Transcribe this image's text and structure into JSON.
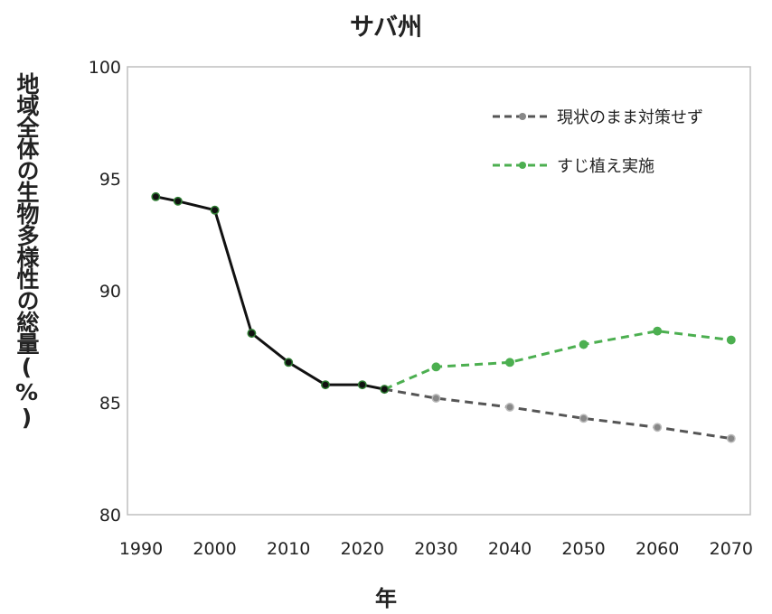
{
  "chart_data": {
    "type": "line",
    "title": "サバ州",
    "xlabel": "年",
    "ylabel": "地域全体の生物多様性の総量(%)",
    "ylim": [
      80,
      100
    ],
    "yticks": [
      80,
      85,
      90,
      95,
      100
    ],
    "x_tick_labels": [
      "1990",
      "2000",
      "2010",
      "2020",
      "2030",
      "2040",
      "2050",
      "2060",
      "2070"
    ],
    "grid": false,
    "legend_position": "top-right",
    "series": [
      {
        "style": "solid",
        "color": "#111111",
        "marker_fill": "#111111",
        "marker_edge": "#2e7d32",
        "x": [
          "1992",
          "1995",
          "2000",
          "2005",
          "2010",
          "2015",
          "2020",
          "2023"
        ],
        "values": [
          94.2,
          94.0,
          93.6,
          88.1,
          86.8,
          85.8,
          85.8,
          85.6
        ]
      },
      {
        "name": "現状のまま対策せず",
        "style": "dashed",
        "color": "#555555",
        "marker_fill": "#888888",
        "x": [
          "2023",
          "2030",
          "2040",
          "2050",
          "2060",
          "2070"
        ],
        "values": [
          85.6,
          85.2,
          84.8,
          84.3,
          83.9,
          83.4
        ]
      },
      {
        "name": "すじ植え実施",
        "style": "dashed",
        "color": "#4caf50",
        "marker_fill": "#4caf50",
        "x": [
          "2023",
          "2030",
          "2040",
          "2050",
          "2060",
          "2070"
        ],
        "values": [
          85.6,
          86.6,
          86.8,
          87.6,
          88.2,
          87.8
        ]
      }
    ]
  }
}
